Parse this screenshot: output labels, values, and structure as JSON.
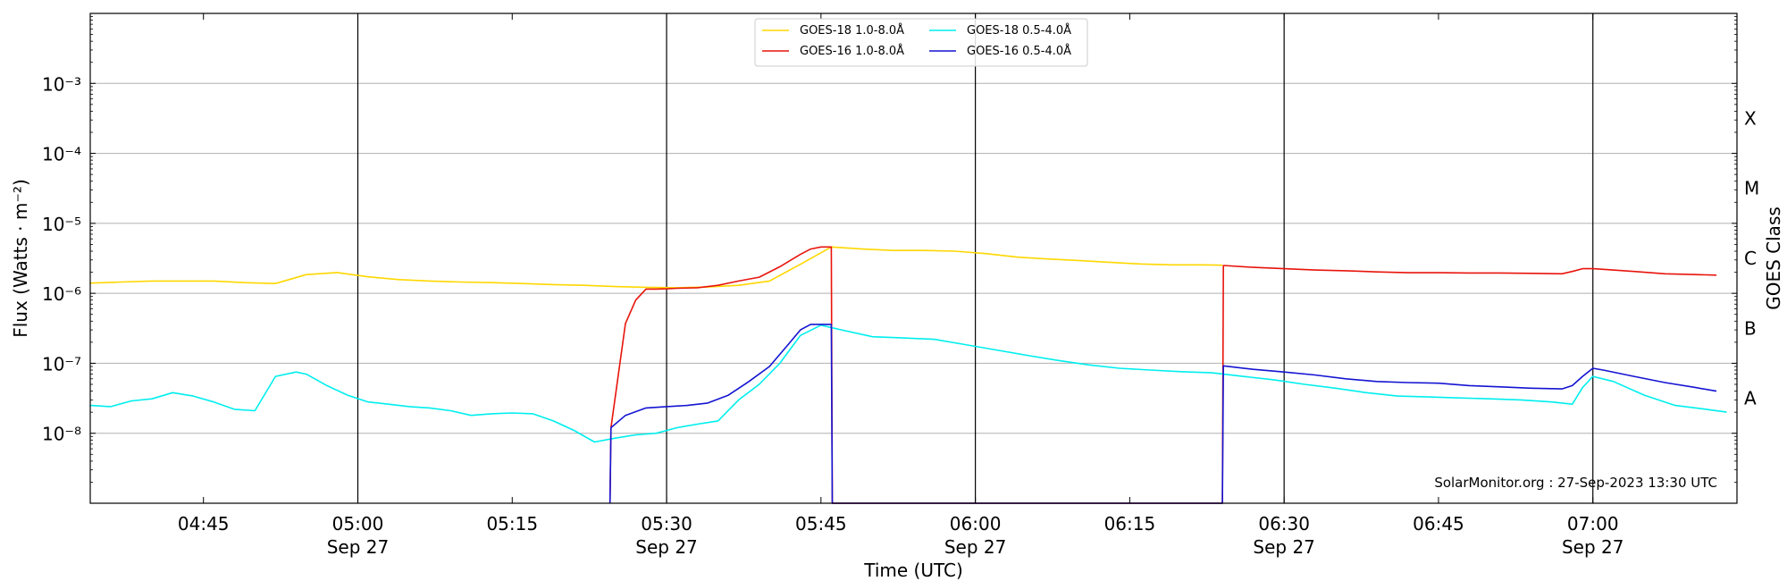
{
  "chart_data": {
    "type": "line",
    "xlabel": "Time (UTC)",
    "ylabel": "Flux (Watts · m⁻²)",
    "y2label": "GOES Class",
    "credit": "SolarMonitor.org : 27-Sep-2023 13:30 UTC",
    "y_scale": "log",
    "xlim": [
      "04:34",
      "07:14"
    ],
    "ylim": [
      1e-09,
      0.01
    ],
    "grid": "horizontal",
    "legend_position": "top-center",
    "x_ticks": [
      {
        "t": "04:45",
        "label": "04:45",
        "date": ""
      },
      {
        "t": "05:00",
        "label": "05:00",
        "date": "Sep 27"
      },
      {
        "t": "05:15",
        "label": "05:15",
        "date": ""
      },
      {
        "t": "05:30",
        "label": "05:30",
        "date": "Sep 27"
      },
      {
        "t": "05:45",
        "label": "05:45",
        "date": ""
      },
      {
        "t": "06:00",
        "label": "06:00",
        "date": "Sep 27"
      },
      {
        "t": "06:15",
        "label": "06:15",
        "date": ""
      },
      {
        "t": "06:30",
        "label": "06:30",
        "date": "Sep 27"
      },
      {
        "t": "06:45",
        "label": "06:45",
        "date": ""
      },
      {
        "t": "07:00",
        "label": "07:00",
        "date": "Sep 27"
      }
    ],
    "vertical_lines": [
      "05:00",
      "05:30",
      "06:00",
      "06:30",
      "07:00"
    ],
    "y_ticks": [
      {
        "exp": -8,
        "label": "10⁻⁸"
      },
      {
        "exp": -7,
        "label": "10⁻⁷"
      },
      {
        "exp": -6,
        "label": "10⁻⁶"
      },
      {
        "exp": -5,
        "label": "10⁻⁵"
      },
      {
        "exp": -4,
        "label": "10⁻⁴"
      },
      {
        "exp": -3,
        "label": "10⁻³"
      }
    ],
    "goes_classes": [
      {
        "label": "A",
        "exp": -7.5
      },
      {
        "label": "B",
        "exp": -6.5
      },
      {
        "label": "C",
        "exp": -5.5
      },
      {
        "label": "M",
        "exp": -4.5
      },
      {
        "label": "X",
        "exp": -3.5
      }
    ],
    "series": [
      {
        "name": "GOES-18 1.0-8.0Å",
        "color": "#FFD700",
        "x": [
          "04:34",
          "04:37",
          "04:40",
          "04:43",
          "04:46",
          "04:49",
          "04:52",
          "04:55",
          "04:58",
          "05:01",
          "05:04",
          "05:07",
          "05:10",
          "05:13",
          "05:16",
          "05:19",
          "05:22",
          "05:25",
          "05:28",
          "05:31",
          "05:34",
          "05:37",
          "05:40",
          "05:43",
          "05:46",
          "05:49",
          "05:52",
          "05:55",
          "05:58",
          "06:01",
          "06:04",
          "06:07",
          "06:10",
          "06:13",
          "06:16",
          "06:19",
          "06:22",
          "06:24"
        ],
        "values": [
          1.4e-06,
          1.45e-06,
          1.5e-06,
          1.5e-06,
          1.5e-06,
          1.42e-06,
          1.38e-06,
          1.85e-06,
          1.98e-06,
          1.72e-06,
          1.57e-06,
          1.5e-06,
          1.45e-06,
          1.42e-06,
          1.38e-06,
          1.33e-06,
          1.3e-06,
          1.25e-06,
          1.22e-06,
          1.2e-06,
          1.23e-06,
          1.3e-06,
          1.5e-06,
          2.6e-06,
          4.6e-06,
          4.3e-06,
          4.1e-06,
          4.1e-06,
          4e-06,
          3.7e-06,
          3.3e-06,
          3.1e-06,
          2.95e-06,
          2.78e-06,
          2.63e-06,
          2.55e-06,
          2.55e-06,
          2.52e-06
        ]
      },
      {
        "name": "GOES-16 1.0-8.0Å",
        "color": "#E8140C",
        "x": [
          "05:24.5",
          "05:24.6",
          "05:26",
          "05:27",
          "05:28",
          "05:29",
          "05:30",
          "05:31",
          "05:33",
          "05:35",
          "05:37",
          "05:39",
          "05:41",
          "05:43",
          "05:44",
          "05:45",
          "05:46",
          "05:46.1",
          "06:24",
          "06:24.1",
          "06:27",
          "06:30",
          "06:33",
          "06:36",
          "06:39",
          "06:42",
          "06:45",
          "06:48",
          "06:51",
          "06:54",
          "06:57",
          "06:58",
          "06:59",
          "07:00",
          "07:01",
          "07:04",
          "07:07",
          "07:10",
          "07:12"
        ],
        "values": [
          1e-09,
          1.2e-08,
          3.7e-07,
          8e-07,
          1.15e-06,
          1.15e-06,
          1.16e-06,
          1.18e-06,
          1.2e-06,
          1.3e-06,
          1.5e-06,
          1.7e-06,
          2.4e-06,
          3.6e-06,
          4.3e-06,
          4.6e-06,
          4.6e-06,
          1e-09,
          1e-09,
          2.5e-06,
          2.35e-06,
          2.25e-06,
          2.15e-06,
          2.1e-06,
          2.02e-06,
          1.97e-06,
          1.97e-06,
          1.95e-06,
          1.95e-06,
          1.93e-06,
          1.9e-06,
          2.05e-06,
          2.25e-06,
          2.25e-06,
          2.2e-06,
          2.05e-06,
          1.9e-06,
          1.85e-06,
          1.82e-06
        ]
      },
      {
        "name": "GOES-18 0.5-4.0Å",
        "color": "#00EEEE",
        "x": [
          "04:34",
          "04:36",
          "04:38",
          "04:40",
          "04:42",
          "04:44",
          "04:46",
          "04:48",
          "04:50",
          "04:52",
          "04:54",
          "04:55",
          "04:57",
          "04:59",
          "05:01",
          "05:03",
          "05:05",
          "05:07",
          "05:09",
          "05:11",
          "05:13",
          "05:15",
          "05:17",
          "05:19",
          "05:21",
          "05:23",
          "05:25",
          "05:27",
          "05:29",
          "05:31",
          "05:33",
          "05:35",
          "05:37",
          "05:39",
          "05:41",
          "05:43",
          "05:45",
          "05:47",
          "05:50",
          "05:53",
          "05:56",
          "05:59",
          "06:02",
          "06:05",
          "06:08",
          "06:11",
          "06:14",
          "06:17",
          "06:20",
          "06:23",
          "06:26",
          "06:29",
          "06:32",
          "06:35",
          "06:38",
          "06:41",
          "06:44",
          "06:47",
          "06:50",
          "06:53",
          "06:56",
          "06:58",
          "06:59",
          "07:00",
          "07:02",
          "07:05",
          "07:08",
          "07:11",
          "07:13"
        ],
        "values": [
          2.5e-08,
          2.4e-08,
          2.9e-08,
          3.1e-08,
          3.8e-08,
          3.4e-08,
          2.8e-08,
          2.2e-08,
          2.1e-08,
          6.5e-08,
          7.5e-08,
          7e-08,
          4.8e-08,
          3.5e-08,
          2.8e-08,
          2.6e-08,
          2.4e-08,
          2.3e-08,
          2.1e-08,
          1.8e-08,
          1.9e-08,
          1.95e-08,
          1.9e-08,
          1.5e-08,
          1.1e-08,
          7.5e-09,
          8.5e-09,
          9.5e-09,
          1e-08,
          1.2e-08,
          1.35e-08,
          1.5e-08,
          3e-08,
          5e-08,
          1e-07,
          2.5e-07,
          3.5e-07,
          3e-07,
          2.4e-07,
          2.3e-07,
          2.2e-07,
          1.85e-07,
          1.55e-07,
          1.3e-07,
          1.1e-07,
          9.5e-08,
          8.5e-08,
          8e-08,
          7.6e-08,
          7.3e-08,
          6.5e-08,
          5.8e-08,
          5e-08,
          4.4e-08,
          3.8e-08,
          3.4e-08,
          3.3e-08,
          3.2e-08,
          3.1e-08,
          3e-08,
          2.8e-08,
          2.6e-08,
          4.5e-08,
          6.5e-08,
          5.5e-08,
          3.5e-08,
          2.5e-08,
          2.2e-08,
          2e-08
        ]
      },
      {
        "name": "GOES-16 0.5-4.0Å",
        "color": "#1414D2",
        "x": [
          "05:24.5",
          "05:24.6",
          "05:26",
          "05:28",
          "05:30",
          "05:32",
          "05:34",
          "05:36",
          "05:38",
          "05:40",
          "05:42",
          "05:43",
          "05:44",
          "05:45",
          "05:46",
          "05:46.1",
          "06:24",
          "06:24.1",
          "06:27",
          "06:30",
          "06:33",
          "06:36",
          "06:39",
          "06:42",
          "06:45",
          "06:48",
          "06:51",
          "06:54",
          "06:57",
          "06:58",
          "06:59",
          "07:00",
          "07:01",
          "07:04",
          "07:07",
          "07:10",
          "07:12"
        ],
        "values": [
          1e-09,
          1.2e-08,
          1.8e-08,
          2.3e-08,
          2.4e-08,
          2.5e-08,
          2.7e-08,
          3.5e-08,
          5.5e-08,
          9e-08,
          2e-07,
          3e-07,
          3.6e-07,
          3.6e-07,
          3.6e-07,
          1e-09,
          1e-09,
          9.2e-08,
          8.2e-08,
          7.5e-08,
          6.8e-08,
          6e-08,
          5.5e-08,
          5.3e-08,
          5.2e-08,
          4.8e-08,
          4.6e-08,
          4.4e-08,
          4.3e-08,
          4.8e-08,
          6.5e-08,
          8.5e-08,
          8e-08,
          6.5e-08,
          5.3e-08,
          4.5e-08,
          4e-08
        ]
      }
    ]
  }
}
